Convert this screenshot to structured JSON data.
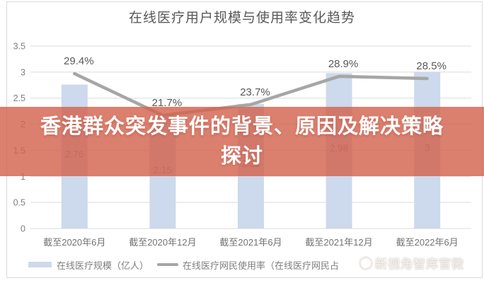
{
  "title": "在线医疗用户规模与使用率变化趋势",
  "overlay": {
    "line1": "香港群众突发事件的背景、原因及解决策略",
    "line2": "探讨",
    "bg_color": "#d3634e"
  },
  "watermark": {
    "text": "新视角智库官微"
  },
  "legend": {
    "bar_label": "在线医疗规模（亿人）",
    "line_label": "在线医疗网民使用率（在线医疗网民占"
  },
  "colors": {
    "bar_fill": "#cdd9ec",
    "line_stroke": "#a6a6a6",
    "grid": "#dbdbdb",
    "title_text": "#595959",
    "banner_overlay": "rgba(211,99,78,0.82)"
  },
  "chart_data": {
    "type": "bar",
    "title": "在线医疗用户规模与使用率变化趋势",
    "categories": [
      "截至2020年6月",
      "截至2020年12月",
      "截至2021年6月",
      "截至2021年12月",
      "截至2022年6月"
    ],
    "series": [
      {
        "name": "在线医疗规模（亿人）",
        "type": "bar",
        "values": [
          2.76,
          2.15,
          2.39,
          2.98,
          3
        ],
        "labels": [
          "2.76",
          "2.15",
          "2.39",
          "2.98",
          "3"
        ],
        "color": "#cdd9ec"
      },
      {
        "name": "在线医疗网民使用率（在线医疗网民占",
        "type": "line",
        "values": [
          29.4,
          21.7,
          23.7,
          28.9,
          28.5
        ],
        "labels": [
          "29.4%",
          "21.7%",
          "23.7%",
          "28.9%",
          "28.5%"
        ],
        "color": "#a6a6a6"
      }
    ],
    "y_axis": {
      "min": 0,
      "max": 3.5,
      "step": 0.5,
      "ticks": [
        "3.5",
        "3",
        "2.5",
        "2",
        "1.5",
        "1",
        "0.5",
        "0"
      ]
    },
    "secondary_axis_visible": false,
    "grid": true,
    "legend_position": "bottom"
  }
}
